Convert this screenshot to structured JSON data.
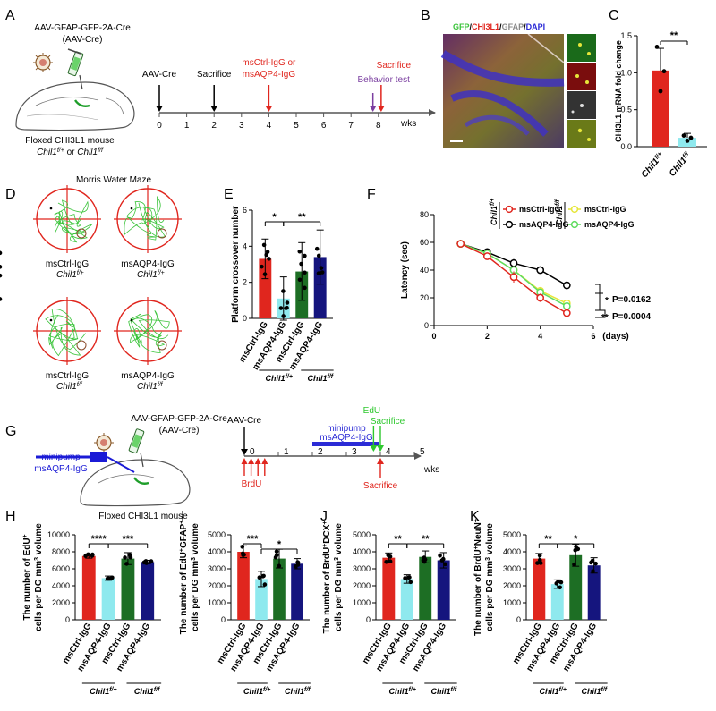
{
  "colors": {
    "red": "#e0261e",
    "cyan": "#8fe9ee",
    "green": "#1d6e24",
    "navy": "#15157e",
    "purple": "#7b3fa0",
    "blue": "#2b2bd6",
    "lime": "#5fdc5f",
    "yellow": "#e6e63a"
  },
  "panelA": {
    "letter": "A",
    "virus_name": "AAV-GFAP-GFP-2A-Cre",
    "virus_short": "(AAV-Cre)",
    "mouse_caption": "Floxed CHI3L1 mouse",
    "genotype_line": "Chil1f/+ or Chil1f/f",
    "genotype_a": "Chil1",
    "genotype_a_sup": "f/+",
    "genotype_or": " or ",
    "genotype_b": "Chil1",
    "genotype_b_sup": "f/f",
    "timeline": {
      "ticks": [
        "0",
        "1",
        "2",
        "3",
        "4",
        "5",
        "6",
        "7",
        "8"
      ],
      "unit": "wks",
      "events": [
        {
          "week": 0,
          "label": "AAV-Cre",
          "color": "#000000"
        },
        {
          "week": 2,
          "label": "Sacrifice",
          "color": "#000000"
        },
        {
          "week": 4,
          "label": "msCtrl-IgG or\nmsAQP4-IgG",
          "color": "#e0261e"
        },
        {
          "week": 7.8,
          "label": "Behavior test",
          "color": "#7b3fa0"
        },
        {
          "week": 8.1,
          "label": "Sacrifice",
          "color": "#e0261e"
        }
      ]
    }
  },
  "panelB": {
    "letter": "B",
    "legend": [
      {
        "text": "GFP",
        "color": "#3cc43c"
      },
      {
        "text": "/",
        "color": "#000000"
      },
      {
        "text": "CHI3L1",
        "color": "#e0261e"
      },
      {
        "text": "/",
        "color": "#000000"
      },
      {
        "text": "GFAP",
        "color": "#888888"
      },
      {
        "text": "/",
        "color": "#000000"
      },
      {
        "text": "DAPI",
        "color": "#2b2bd6"
      }
    ]
  },
  "panelC": {
    "letter": "C",
    "ylabel": "CHI3L1 mRNA fold change",
    "yticks": [
      "0.0",
      "0.5",
      "1.0",
      "1.5"
    ],
    "sig": "**",
    "categories": [
      {
        "base": "Chil1",
        "sup": "f/+"
      },
      {
        "base": "Chil1",
        "sup": "f/f"
      }
    ]
  },
  "panelD": {
    "letter": "D",
    "title": "Morris Water Maze",
    "mazes": [
      {
        "label": "msCtrl-IgG",
        "geno": "Chil1",
        "sup": "f/+"
      },
      {
        "label": "msAQP4-IgG",
        "geno": "Chil1",
        "sup": "f/+"
      },
      {
        "label": "msCtrl-IgG",
        "geno": "Chil1",
        "sup": "f/f"
      },
      {
        "label": "msAQP4-IgG",
        "geno": "Chil1",
        "sup": "f/f"
      }
    ]
  },
  "panelE": {
    "letter": "E",
    "ylabel": "Platform crossover number",
    "yticks": [
      "0",
      "2",
      "4",
      "6"
    ],
    "sig": [
      {
        "text": "*"
      },
      {
        "text": "**"
      }
    ],
    "groups": [
      {
        "base": "Chil1",
        "sup": "f/+"
      },
      {
        "base": "Chil1",
        "sup": "f/f"
      }
    ]
  },
  "panelF": {
    "letter": "F",
    "ylabel": "Latency (sec)",
    "xlabel": "(days)",
    "yticks": [
      "0",
      "20",
      "40",
      "60",
      "80"
    ],
    "xticks": [
      "0",
      "2",
      "4",
      "6"
    ],
    "geno_a": "Chil1",
    "geno_a_sup": "f/+",
    "geno_b": "Chil1",
    "geno_b_sup": "f/f",
    "legend": [
      {
        "label": "msCtrl-IgG",
        "color": "#e0261e"
      },
      {
        "label": "msAQP4-IgG",
        "color": "#000000"
      },
      {
        "label": "msCtrl-IgG",
        "color": "#e6e63a"
      },
      {
        "label": "msAQP4-IgG",
        "color": "#5fdc5f"
      }
    ],
    "stats": [
      {
        "stars": "*",
        "p": "P=0.0162"
      },
      {
        "stars": "**",
        "p": "P=0.0004"
      }
    ]
  },
  "panelG": {
    "letter": "G",
    "virus_name": "AAV-GFAP-GFP-2A-Cre",
    "virus_short": "(AAV-Cre)",
    "pump_label_1": "minipump",
    "pump_label_2": "msAQP4-IgG",
    "mouse_caption": "Floxed CHI3L1 mouse",
    "timeline": {
      "ticks": [
        "0",
        "1",
        "2",
        "3",
        "4",
        "5"
      ],
      "unit": "wks",
      "aav": "AAV-Cre",
      "pump1": "minipump",
      "pump2": "msAQP4-IgG",
      "edu": "EdU",
      "sacrifice_top": "Sacrifice",
      "brdu": "BrdU",
      "sacrifice_bottom": "Sacrifice"
    }
  },
  "bar_labels": [
    "msCtrl-IgG",
    "msAQP4-IgG",
    "msCtrl-IgG",
    "msAQP4-IgG"
  ],
  "panelH": {
    "letter": "H",
    "ylabel1": "The number of EdU",
    "ylabel1_sup": "+",
    "ylabel2": "cells per DG mm",
    "ylabel2_sup": "3",
    "ylabel2_end": " volume",
    "yticks": [
      "0",
      "2000",
      "4000",
      "6000",
      "8000",
      "10000"
    ],
    "sig": [
      "****",
      "***"
    ]
  },
  "panelI": {
    "letter": "I",
    "ylabel1": "The number of EdU",
    "ylabel1_sup": "+",
    "ylabel1_b": "GFAP",
    "ylabel1_sup_b": "+",
    "ylabel2": "cells per DG mm",
    "ylabel2_sup": "3",
    "ylabel2_end": " volume",
    "yticks": [
      "0",
      "1000",
      "2000",
      "3000",
      "4000",
      "5000"
    ],
    "sig": [
      "***",
      "*"
    ]
  },
  "panelJ": {
    "letter": "J",
    "ylabel1": "The number of BrdU",
    "ylabel1_sup": "+",
    "ylabel1_b": "DCX",
    "ylabel1_sup_b": "+",
    "ylabel2": "cells per DG mm",
    "ylabel2_sup": "3",
    "ylabel2_end": " volume",
    "yticks": [
      "0",
      "1000",
      "2000",
      "3000",
      "4000",
      "5000"
    ],
    "sig": [
      "**",
      "**"
    ]
  },
  "panelK": {
    "letter": "K",
    "ylabel1": "The number of BrdU",
    "ylabel1_sup": "+",
    "ylabel1_b": "NeuN",
    "ylabel1_sup_b": "+",
    "ylabel2": "cells per DG mm",
    "ylabel2_sup": "3",
    "ylabel2_end": " volume",
    "yticks": [
      "0",
      "1000",
      "2000",
      "3000",
      "4000",
      "5000"
    ],
    "sig": [
      "**",
      "*"
    ]
  },
  "chart_data": [
    {
      "panel": "C",
      "type": "bar",
      "categories": [
        "Chil1f/+",
        "Chil1f/f"
      ],
      "values": [
        1.03,
        0.12
      ],
      "errors": [
        0.3,
        0.06
      ],
      "points": [
        [
          1.35,
          0.75,
          1.02
        ],
        [
          0.15,
          0.08,
          0.12
        ]
      ],
      "ylabel": "CHI3L1 mRNA fold change",
      "ylim": [
        0,
        1.5
      ]
    },
    {
      "panel": "E",
      "type": "bar",
      "categories": [
        "msCtrl-IgG",
        "msAQP4-IgG",
        "msCtrl-IgG",
        "msAQP4-IgG"
      ],
      "values": [
        3.3,
        1.1,
        2.6,
        3.4
      ],
      "errors": [
        1.1,
        1.2,
        1.6,
        1.5
      ],
      "ylabel": "Platform crossover number",
      "ylim": [
        0,
        6
      ]
    },
    {
      "panel": "F",
      "type": "line",
      "x": [
        1,
        2,
        3,
        4,
        5
      ],
      "ylabel": "Latency (sec)",
      "xlabel": "(days)",
      "xlim": [
        0,
        6
      ],
      "ylim": [
        0,
        80
      ],
      "series": [
        {
          "values": [
            59,
            50,
            35,
            20,
            9
          ]
        },
        {
          "values": [
            59,
            53,
            45,
            40,
            29
          ]
        },
        {
          "values": [
            59,
            52,
            40,
            25,
            16
          ]
        },
        {
          "values": [
            59,
            52,
            40,
            24,
            14
          ]
        }
      ]
    },
    {
      "panel": "H",
      "type": "bar",
      "categories": [
        "msCtrl-IgG",
        "msAQP4-IgG",
        "msCtrl-IgG",
        "msAQP4-IgG"
      ],
      "values": [
        7500,
        4900,
        7200,
        6800
      ],
      "errors": [
        250,
        250,
        700,
        200
      ],
      "ylim": [
        0,
        10000
      ]
    },
    {
      "panel": "I",
      "type": "bar",
      "categories": [
        "msCtrl-IgG",
        "msAQP4-IgG",
        "msCtrl-IgG",
        "msAQP4-IgG"
      ],
      "values": [
        4000,
        2400,
        3600,
        3300
      ],
      "errors": [
        350,
        450,
        550,
        300
      ],
      "ylim": [
        0,
        5000
      ]
    },
    {
      "panel": "J",
      "type": "bar",
      "categories": [
        "msCtrl-IgG",
        "msAQP4-IgG",
        "msCtrl-IgG",
        "msAQP4-IgG"
      ],
      "values": [
        3650,
        2400,
        3700,
        3500
      ],
      "errors": [
        280,
        250,
        350,
        450
      ],
      "ylim": [
        0,
        5000
      ]
    },
    {
      "panel": "K",
      "type": "bar",
      "categories": [
        "msCtrl-IgG",
        "msAQP4-IgG",
        "msCtrl-IgG",
        "msAQP4-IgG"
      ],
      "values": [
        3600,
        2100,
        3800,
        3200
      ],
      "errors": [
        300,
        250,
        650,
        450
      ],
      "ylim": [
        0,
        5000
      ]
    }
  ]
}
